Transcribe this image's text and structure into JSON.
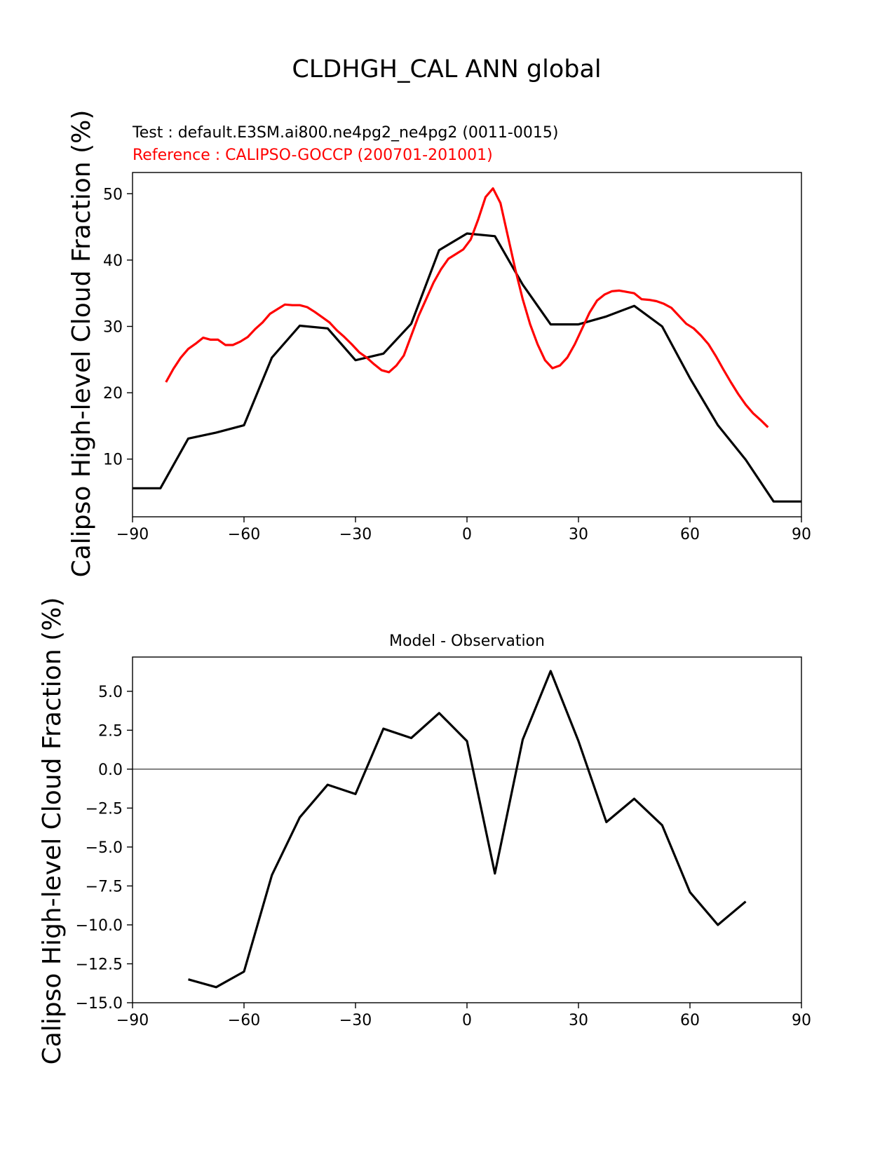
{
  "figure": {
    "suptitle": "CLDHGH_CAL ANN global"
  },
  "colors": {
    "test_line": "#000000",
    "reference_line": "#ff0000",
    "zero_line": "#808080",
    "axes": "#000000",
    "background": "#ffffff"
  },
  "chart_data": [
    {
      "type": "line",
      "title_left_lines": [
        "Test : default.E3SM.ai800.ne4pg2_ne4pg2 (0011-0015)",
        "Reference : CALIPSO-GOCCP (200701-201001)"
      ],
      "title": "",
      "xlabel": "",
      "ylabel": "Calipso High-level Cloud Fraction (%)",
      "xlim": [
        -90,
        90
      ],
      "ylim": [
        1.3,
        53.2
      ],
      "xticks": [
        -90,
        -60,
        -30,
        0,
        30,
        60,
        90
      ],
      "yticks": [
        10,
        20,
        30,
        40,
        50
      ],
      "ytick_labels": [
        "10",
        "20",
        "30",
        "40",
        "50"
      ],
      "grid": false,
      "series": [
        {
          "key": "test",
          "color": "#000000",
          "x": [
            -90,
            -82.5,
            -75,
            -67.5,
            -60,
            -52.5,
            -45,
            -37.5,
            -30,
            -22.5,
            -15,
            -7.5,
            0,
            7.5,
            15,
            22.5,
            30,
            37.5,
            45,
            52.5,
            60,
            67.5,
            75,
            82.5,
            90
          ],
          "values": [
            5.6,
            5.6,
            13.1,
            14.0,
            15.1,
            25.3,
            30.1,
            29.7,
            24.9,
            25.9,
            30.4,
            41.5,
            44.0,
            43.6,
            36.3,
            30.3,
            30.3,
            31.5,
            33.1,
            30.0,
            22.2,
            15.1,
            9.9,
            3.6,
            3.6
          ]
        },
        {
          "key": "reference",
          "color": "#ff0000",
          "x": [
            -81,
            -79,
            -77,
            -75,
            -73,
            -71,
            -69,
            -67,
            -65,
            -63,
            -61,
            -59,
            -57,
            -55,
            -53,
            -51,
            -49,
            -47,
            -45,
            -43,
            -41,
            -39,
            -37,
            -35,
            -33,
            -31,
            -29,
            -27,
            -25,
            -23,
            -21,
            -19,
            -17,
            -15,
            -13,
            -11,
            -9,
            -7,
            -5,
            -3,
            -1,
            1,
            3,
            5,
            7,
            9,
            11,
            13,
            15,
            17,
            19,
            21,
            23,
            25,
            27,
            29,
            31,
            33,
            35,
            37,
            39,
            41,
            43,
            45,
            47,
            49,
            51,
            53,
            55,
            57,
            59,
            61,
            63,
            65,
            67,
            69,
            71,
            73,
            75,
            77,
            79,
            81
          ],
          "values": [
            21.6,
            23.6,
            25.3,
            26.6,
            27.4,
            28.3,
            28.0,
            28.0,
            27.2,
            27.2,
            27.7,
            28.4,
            29.6,
            30.6,
            31.9,
            32.6,
            33.3,
            33.2,
            33.2,
            32.9,
            32.2,
            31.4,
            30.6,
            29.4,
            28.4,
            27.3,
            26.1,
            25.3,
            24.3,
            23.4,
            23.1,
            24.1,
            25.6,
            28.6,
            31.6,
            34.1,
            36.6,
            38.6,
            40.2,
            40.9,
            41.6,
            43.1,
            46.1,
            49.5,
            50.8,
            48.6,
            43.6,
            38.6,
            34.1,
            30.3,
            27.3,
            24.9,
            23.7,
            24.1,
            25.3,
            27.3,
            29.7,
            32.1,
            33.9,
            34.8,
            35.3,
            35.4,
            35.2,
            35.0,
            34.1,
            34.0,
            33.8,
            33.4,
            32.8,
            31.6,
            30.4,
            29.7,
            28.6,
            27.3,
            25.5,
            23.5,
            21.6,
            19.8,
            18.2,
            16.9,
            15.9,
            14.8
          ]
        }
      ]
    },
    {
      "type": "line",
      "title": "Model - Observation",
      "xlabel": "",
      "ylabel": "Calipso High-level Cloud Fraction (%)",
      "xlim": [
        -90,
        90
      ],
      "ylim": [
        -15.0,
        7.2
      ],
      "xticks": [
        -90,
        -60,
        -30,
        0,
        30,
        60,
        90
      ],
      "yticks": [
        -15.0,
        -12.5,
        -10.0,
        -7.5,
        -5.0,
        -2.5,
        0.0,
        2.5,
        5.0
      ],
      "ytick_labels": [
        "−15.0",
        "−12.5",
        "−10.0",
        "−7.5",
        "−5.0",
        "−2.5",
        "0.0",
        "2.5",
        "5.0"
      ],
      "grid": false,
      "zero_line": 0,
      "series": [
        {
          "key": "difference",
          "color": "#000000",
          "x": [
            -75,
            -67.5,
            -60,
            -52.5,
            -45,
            -37.5,
            -30,
            -22.5,
            -15,
            -7.5,
            0,
            7.5,
            15,
            22.5,
            30,
            37.5,
            45,
            52.5,
            60,
            67.5,
            75
          ],
          "values": [
            -13.5,
            -14.0,
            -13.0,
            -6.8,
            -3.1,
            -1.0,
            -1.6,
            2.6,
            2.0,
            3.6,
            1.8,
            -6.7,
            1.9,
            6.3,
            1.8,
            -3.4,
            -1.9,
            -3.6,
            -7.9,
            -10.0,
            -8.5
          ]
        }
      ]
    }
  ]
}
